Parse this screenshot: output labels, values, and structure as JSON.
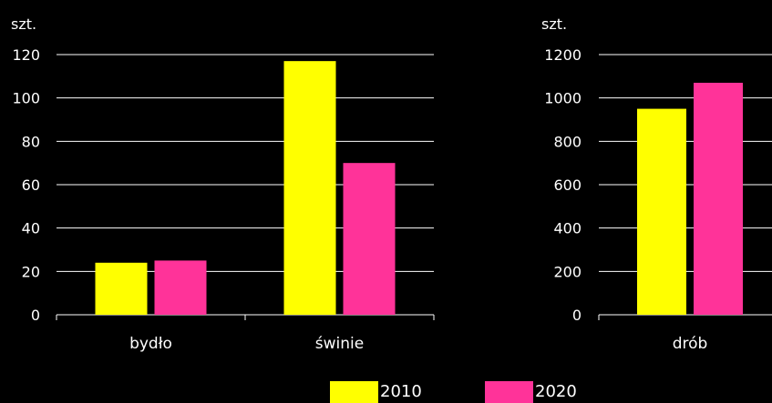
{
  "colors": {
    "s2010": "#ffff00",
    "s2020": "#ff3399",
    "background": "#000000",
    "axis": "#ffffff"
  },
  "chart_data": [
    {
      "type": "bar",
      "ylabel": "szt.",
      "ylim": [
        0,
        120
      ],
      "yticks": [
        0,
        20,
        40,
        60,
        80,
        100,
        120
      ],
      "categories": [
        "bydło",
        "świnie"
      ],
      "series": [
        {
          "name": "2010",
          "values": [
            24,
            117
          ]
        },
        {
          "name": "2020",
          "values": [
            25,
            70
          ]
        }
      ],
      "grid": true
    },
    {
      "type": "bar",
      "ylabel": "szt.",
      "ylim": [
        0,
        1200
      ],
      "yticks": [
        0,
        200,
        400,
        600,
        800,
        1000,
        1200
      ],
      "categories": [
        "drób"
      ],
      "series": [
        {
          "name": "2010",
          "values": [
            950
          ]
        },
        {
          "name": "2020",
          "values": [
            1070
          ]
        }
      ],
      "grid": true
    }
  ],
  "legend": {
    "placement": "bottom-center",
    "items": [
      "2010",
      "2020"
    ]
  }
}
